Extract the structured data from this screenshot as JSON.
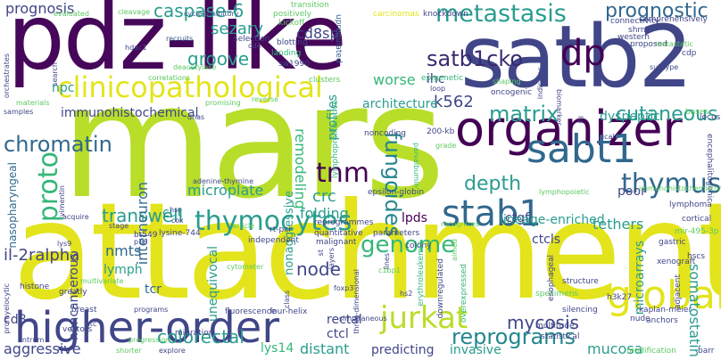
{
  "words": {
    "mars": "mars",
    "attachment": "attachment",
    "pdz_like": "pdz-like",
    "satb2": "satb2",
    "organizer": "organizer",
    "higher_order": "higher-order",
    "clinicopathological": "clinicopathological",
    "sabt1": "sabt1",
    "stab1": "stab1",
    "metastasis": "metastasis",
    "satb1cko": "satb1cko",
    "thymocytes": "thymocytes",
    "jurkat": "jurkat",
    "global": "global",
    "thymus": "thymus",
    "cutaneous": "cutaneous",
    "matrix": "matrix",
    "prognostic": "prognostic",
    "tnm": "tnm",
    "chromatin": "chromatin",
    "genome": "genome",
    "fungoides": "fungoides",
    "reprograms": "reprograms",
    "transwell": "transwell",
    "depth": "depth",
    "caspase_6": "caspase-6",
    "sezary": "sezary",
    "groove": "groove",
    "proto": "proto",
    "colorectal": "colorectal",
    "node": "node",
    "mycosis": "mycosis",
    "dp": "dp",
    "prognosis": "prognosis",
    "cd8sp": "cd8sp",
    "k562": "k562",
    "worse": "worse",
    "remodeling": "remodeling",
    "crc": "crc",
    "thymus_small": "tethers",
    "lpds": "lpds",
    "il_2ralpha": "il-2ralpha",
    "nmts": "nmts",
    "ctcls": "ctcls",
    "invasive": "invasive",
    "distant": "distant",
    "aggressive": "aggressive",
    "predicting": "predicting",
    "somatostatin": "somatostatin",
    "mucosa": "mucosa",
    "rectal": "rectal",
    "ctcl": "ctcl",
    "lys14": "lys14",
    "tcr": "tcr",
    "lymph": "lymph",
    "microarrays": "microarrays",
    "unequivocal": "unequivocal",
    "interneuron": "interneuron",
    "immunohistochemical": "immunohistochemical",
    "architecture": "architecture",
    "ihc": "ihc",
    "npc": "npc",
    "poor": "poor",
    "dyspeptic": "dyspeptic",
    "folding": "folding",
    "microplate": "microplate",
    "ctgf": "ctgf",
    "lineage_enriched": "lineage-enriched",
    "cd8": "cd8",
    "nasopharyngeal": "nasopharyngeal",
    "noncancerous": "noncancerous",
    "cut": "cut",
    "nonaggressive": "nonaggressive",
    "profiles": "profiles",
    "transition": "transition",
    "positively": "positively",
    "kickoff": "kickoff",
    "selection": "selection",
    "cleavage": "cleavage",
    "recruits": "recruits",
    "cycle_inhibitory": "cycle-inhibitory",
    "blotting": "blotting",
    "landing": "landing",
    "sw1990": "sw1990",
    "upregulated": "upregulated",
    "carcinomas": "carcinomas",
    "knockdown": "knockdown",
    "connectivity": "connectivity",
    "shrna": "shrna",
    "comprehensively": "comprehensively",
    "western": "western",
    "proposed": "proposed",
    "epigenetic": "epigenetic",
    "hdac1": "hdac1",
    "cd4": "cd4",
    "evaluated": "evaluated",
    "correlations": "correlations",
    "clusters": "clusters",
    "oncogenic": "oncogenic",
    "biomarker": "biomarker",
    "metastatic": "metastatic",
    "cdp": "cdp",
    "subtype": "subtype",
    "bases": "bases",
    "locus": "locus",
    "lcl": "lcl",
    "ucal": "ucal",
    "200_kb": "200-kb",
    "grade": "grade",
    "noncoding": "noncoding",
    "lymphoproliferative": "lymphoproliferative",
    "parvalbumin": "parvalbumin",
    "epsilon_globin": "epsilon-globin",
    "lymphopoietic": "lymphopoietic",
    "reprogrammes": "reprogrammes",
    "recognizes": "recognizes",
    "quantitative": "quantitative",
    "parameters": "parameters",
    "rt_pcr": "rt-pcr",
    "bt549": "bt549",
    "lysine_744": "lysine-744",
    "independent": "independent",
    "malignant": "malignant",
    "colony": "colony",
    "erythroleukemia": "erythroleukemia",
    "downregulated": "downregulated",
    "overexpressed": "overexpressed",
    "structure": "structure",
    "specimens": "specimens",
    "h3k27": "h3k27",
    "kaplan_meier": "kaplan-meier",
    "silencing": "silencing",
    "nude": "nude",
    "anchors": "anchors",
    "barr": "barr",
    "modification": "modification",
    "xenograft": "xenograft",
    "esophageal": "esophageal",
    "adjacent": "adjacent",
    "gastric": "gastric",
    "hscs": "hscs",
    "mir_495_3p": "mir-495-3p",
    "cortical": "cortical",
    "lymphoma": "lymphoma",
    "encephalitogenic": "encephalitogenic",
    "immunohistochemistry": "immunohistochemistry",
    "histone": "histone",
    "promyelocytic": "promyelocytic",
    "multivariate": "multivariate",
    "breast": "breast",
    "greatly": "greatly",
    "atc": "atc",
    "antrum": "antrum",
    "vectors": "vectors",
    "progression": "progression",
    "migration": "migration",
    "shorter": "shorter",
    "explore": "explore",
    "fluorescence": "fluorescence",
    "four_helix": "four-helix",
    "simultaneous": "simultaneous",
    "multitude": "multitude",
    "statistical": "statistical",
    "programs": "programs",
    "class": "class",
    "foxp3": "foxp3",
    "hs2": "hs2",
    "three_dimensional": "three-dimensional",
    "cytometer": "cytometer",
    "p16": "p16",
    "lys9": "lys9",
    "stage": "stage",
    "hsc": "hsc",
    "cox": "cox",
    "acquire": "acquire",
    "vimentin": "vimentin",
    "article": "article",
    "adenine_thymine": "adenine-thymine",
    "promising": "promising",
    "dnas": "dnas",
    "reverse": "reverse",
    "materials": "materials",
    "samples": "samples",
    "search": "search",
    "deacetylase": "deacetylase",
    "orchestrates": "orchestrates",
    "shaping": "shaping",
    "loop": "loop",
    "indicator": "indicator",
    "layers": "layers",
    "aimed": "aimed",
    "lines": "lines",
    "st": "st",
    "c1bp1": "c1bp1"
  }
}
